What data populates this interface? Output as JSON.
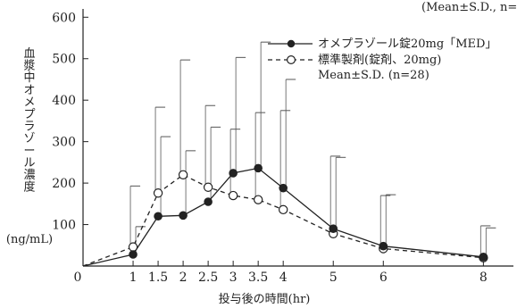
{
  "chart_data": {
    "type": "line",
    "title": "",
    "xlabel": "投与後の時間(hr)",
    "ylabel": "血漿中オメプラゾール濃度",
    "ylabel_unit": "(ng/mL)",
    "top_note": "(Mean±S.D., n=",
    "x_tick_labels": [
      "0",
      "1",
      "1.5",
      "2",
      "2.5",
      "3",
      "3.5",
      "4",
      "5",
      "6",
      "8"
    ],
    "x_ticks": [
      0,
      1,
      1.5,
      2,
      2.5,
      3,
      3.5,
      4,
      5,
      6,
      8
    ],
    "y_ticks": [
      100,
      200,
      300,
      400,
      500,
      600
    ],
    "xlim": [
      0,
      8.6
    ],
    "ylim": [
      0,
      620
    ],
    "legend_position": "top-right",
    "legend_stats": "Mean±S.D. (n=28)",
    "series": [
      {
        "name": "オメプラゾール錠20mg「MED」",
        "style": "solid",
        "marker": "filled-circle",
        "color": "#222222",
        "x": [
          0,
          1,
          1.5,
          2,
          2.5,
          3,
          3.5,
          4,
          5,
          6,
          8
        ],
        "values": [
          0,
          28,
          120,
          122,
          155,
          224,
          236,
          188,
          90,
          48,
          22
        ],
        "sd_upper": [
          null,
          95,
          312,
          278,
          335,
          503,
          540,
          450,
          262,
          172,
          92
        ]
      },
      {
        "name": "標準製剤(錠剤、20mg)",
        "style": "dashed",
        "marker": "open-circle",
        "color": "#222222",
        "x": [
          0,
          1,
          1.5,
          2,
          2.5,
          3,
          3.5,
          4,
          5,
          6,
          8
        ],
        "values": [
          0,
          46,
          176,
          220,
          190,
          170,
          160,
          136,
          78,
          42,
          20
        ],
        "sd_upper": [
          null,
          193,
          383,
          497,
          387,
          330,
          370,
          375,
          265,
          170,
          97
        ]
      }
    ]
  }
}
